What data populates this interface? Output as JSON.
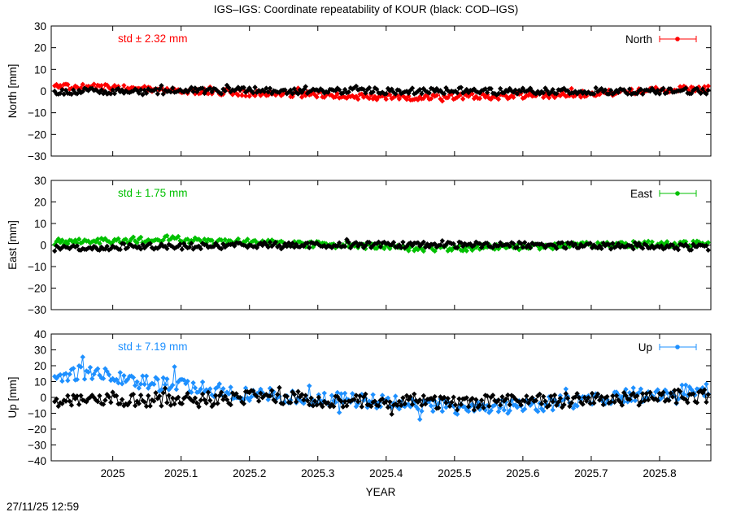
{
  "title": "IGS–IGS: Coordinate repeatability of KOUR (black: COD–IGS)",
  "timestamp": "27/11/25 12:59",
  "xlabel": "YEAR",
  "x_ticks": [
    "2025",
    "2025.1",
    "2025.2",
    "2025.3",
    "2025.4",
    "2025.5",
    "2025.6",
    "2025.7",
    "2025.8"
  ],
  "chart_data": [
    {
      "type": "scatter",
      "component": "North",
      "ylabel": "North [mm]",
      "ylim": [
        -30,
        30
      ],
      "yticks": [
        -30,
        -20,
        -10,
        0,
        10,
        20,
        30
      ],
      "xlim": [
        2024.91,
        2025.875
      ],
      "std_label": "std ± 2.32 mm",
      "legend": "North",
      "legend_position": "top-right",
      "color": "#ff0000",
      "series": [
        {
          "name": "North",
          "color": "#ff0000",
          "x": [
            2024.92,
            2024.96,
            2025.0,
            2025.04,
            2025.08,
            2025.12,
            2025.16,
            2025.2,
            2025.24,
            2025.28,
            2025.32,
            2025.36,
            2025.4,
            2025.44,
            2025.48,
            2025.52,
            2025.56,
            2025.6,
            2025.64,
            2025.68,
            2025.72,
            2025.76,
            2025.8,
            2025.84,
            2025.87
          ],
          "y": [
            2,
            2,
            1.5,
            1,
            0.5,
            0,
            -0.5,
            -1,
            -1,
            -1.5,
            -2,
            -2.5,
            -3,
            -3,
            -2.5,
            -2.5,
            -2.5,
            -2,
            -2,
            -1.5,
            -1,
            0,
            0.5,
            1,
            1
          ]
        },
        {
          "name": "COD–IGS",
          "color": "#000000",
          "x": [
            2024.92,
            2024.96,
            2025.0,
            2025.04,
            2025.08,
            2025.12,
            2025.16,
            2025.2,
            2025.24,
            2025.28,
            2025.32,
            2025.36,
            2025.4,
            2025.44,
            2025.48,
            2025.52,
            2025.56,
            2025.6,
            2025.64,
            2025.68,
            2025.72,
            2025.76,
            2025.8,
            2025.84,
            2025.87
          ],
          "y": [
            -0.5,
            0,
            0,
            -0.5,
            0,
            0.5,
            0,
            0.5,
            0,
            0,
            0,
            0.5,
            0,
            0,
            0,
            0.5,
            0,
            0,
            0,
            0,
            0,
            -0.5,
            0,
            0,
            0
          ]
        }
      ]
    },
    {
      "type": "scatter",
      "component": "East",
      "ylabel": "East [mm]",
      "ylim": [
        -30,
        30
      ],
      "yticks": [
        -30,
        -20,
        -10,
        0,
        10,
        20,
        30
      ],
      "xlim": [
        2024.91,
        2025.875
      ],
      "std_label": "std ± 1.75 mm",
      "legend": "East",
      "legend_position": "top-right",
      "color": "#00c000",
      "series": [
        {
          "name": "East",
          "color": "#00c000",
          "x": [
            2024.92,
            2024.96,
            2025.0,
            2025.04,
            2025.08,
            2025.12,
            2025.16,
            2025.2,
            2025.24,
            2025.28,
            2025.32,
            2025.36,
            2025.4,
            2025.44,
            2025.48,
            2025.52,
            2025.56,
            2025.6,
            2025.64,
            2025.68,
            2025.72,
            2025.76,
            2025.8,
            2025.84,
            2025.87
          ],
          "y": [
            1.5,
            2,
            2,
            2.5,
            3,
            2,
            1.5,
            1.5,
            1,
            0.5,
            0,
            -0.5,
            -1,
            -1.5,
            -1.5,
            -1.5,
            -1,
            -1,
            -0.5,
            0,
            0,
            0.5,
            0.5,
            0.5,
            0.5
          ]
        },
        {
          "name": "COD–IGS",
          "color": "#000000",
          "x": [
            2024.92,
            2024.96,
            2025.0,
            2025.04,
            2025.08,
            2025.12,
            2025.16,
            2025.2,
            2025.24,
            2025.28,
            2025.32,
            2025.36,
            2025.4,
            2025.44,
            2025.48,
            2025.52,
            2025.56,
            2025.6,
            2025.64,
            2025.68,
            2025.72,
            2025.76,
            2025.8,
            2025.84,
            2025.87
          ],
          "y": [
            -1.5,
            -1,
            -1,
            -0.5,
            -1,
            -0.5,
            -0.5,
            0,
            0,
            0,
            0,
            0,
            0,
            0,
            0,
            0,
            0,
            0,
            -0.5,
            0,
            -0.5,
            -0.5,
            -1,
            -1,
            -1
          ]
        }
      ]
    },
    {
      "type": "scatter",
      "component": "Up",
      "ylabel": "Up [mm]",
      "ylim": [
        -40,
        40
      ],
      "yticks": [
        -40,
        -30,
        -20,
        -10,
        0,
        10,
        20,
        30,
        40
      ],
      "xlim": [
        2024.91,
        2025.875
      ],
      "std_label": "std ± 7.19 mm",
      "legend": "Up",
      "legend_position": "top-right",
      "color": "#1e90ff",
      "series": [
        {
          "name": "Up",
          "color": "#1e90ff",
          "x": [
            2024.92,
            2024.96,
            2025.0,
            2025.04,
            2025.08,
            2025.12,
            2025.16,
            2025.2,
            2025.24,
            2025.28,
            2025.32,
            2025.36,
            2025.4,
            2025.44,
            2025.48,
            2025.52,
            2025.56,
            2025.6,
            2025.64,
            2025.68,
            2025.72,
            2025.76,
            2025.8,
            2025.84,
            2025.87
          ],
          "y": [
            14,
            16,
            13,
            10,
            8,
            6,
            4,
            2,
            1,
            0,
            -1,
            -2,
            -3,
            -4,
            -5,
            -7,
            -6,
            -5,
            -4,
            -2,
            0,
            1,
            2,
            4,
            5
          ]
        },
        {
          "name": "COD–IGS",
          "color": "#000000",
          "x": [
            2024.92,
            2024.96,
            2025.0,
            2025.04,
            2025.08,
            2025.12,
            2025.16,
            2025.2,
            2025.24,
            2025.28,
            2025.32,
            2025.36,
            2025.4,
            2025.44,
            2025.48,
            2025.52,
            2025.56,
            2025.6,
            2025.64,
            2025.68,
            2025.72,
            2025.76,
            2025.8,
            2025.84,
            2025.87
          ],
          "y": [
            -2,
            -3,
            -1,
            -2,
            -1,
            -2,
            -1,
            0,
            0,
            -1,
            -2,
            -2,
            -3,
            -2,
            -3,
            -4,
            -2,
            -2,
            -2,
            -1,
            -1,
            -1,
            0,
            1,
            1
          ]
        }
      ]
    }
  ]
}
